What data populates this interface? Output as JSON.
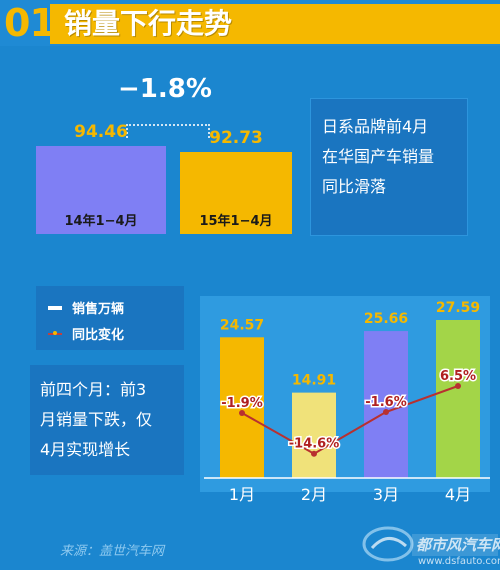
{
  "header": {
    "number": "01",
    "title": "销量下行走势"
  },
  "top_comparison": {
    "change": "−1.8%",
    "bars": [
      {
        "label": "14年1−4月",
        "value": "94.46",
        "color": "#7f7ff4"
      },
      {
        "label": "15年1−4月",
        "value": "92.73",
        "color": "#f5b800"
      }
    ]
  },
  "note": {
    "text_lines": [
      "日系品牌前4月",
      "在华国产车销量",
      "同比滑落"
    ]
  },
  "legend": {
    "sales": "销售万辆",
    "yoy": "同比变化"
  },
  "summary": {
    "text_lines": [
      "前四个月：前3",
      "月销量下跌，仅",
      "4月实现增长"
    ]
  },
  "source": "来源：盖世汽车网",
  "watermark": {
    "line1": "都市风汽车网",
    "line2": "www.dsfauto.com"
  },
  "chart_data": {
    "type": "bar",
    "categories": [
      "1月",
      "2月",
      "3月",
      "4月"
    ],
    "series": [
      {
        "name": "销售万辆",
        "values": [
          24.57,
          14.91,
          25.66,
          27.59
        ]
      },
      {
        "name": "同比变化",
        "values": [
          -1.9,
          -14.6,
          -1.6,
          6.5
        ]
      }
    ],
    "value_labels": [
      "24.57",
      "14.91",
      "25.66",
      "27.59"
    ],
    "yoy_labels": [
      "-1.9%",
      "-14.6%",
      "-1.6%",
      "6.5%"
    ],
    "bar_colors": [
      "#f5b800",
      "#f0e27a",
      "#7f7ff4",
      "#a3d548"
    ],
    "line_color": "#b83030"
  }
}
